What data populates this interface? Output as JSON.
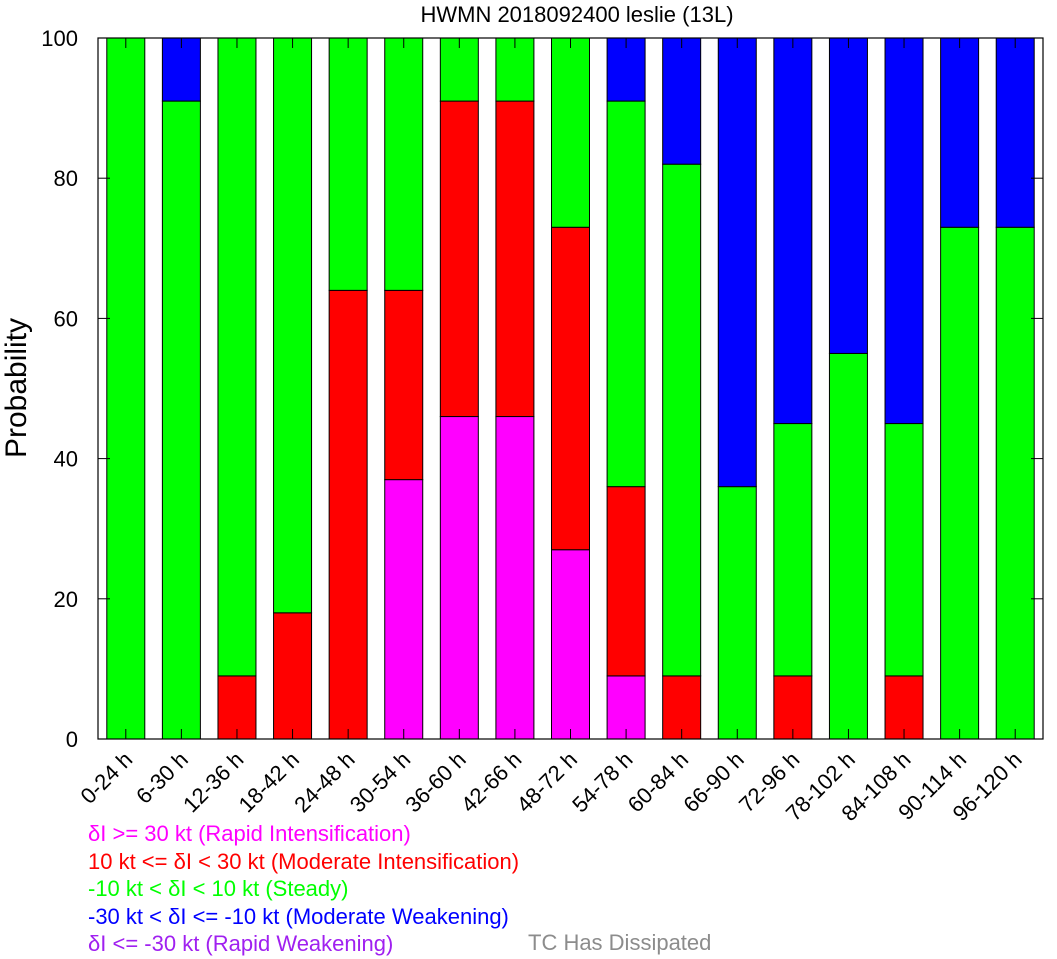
{
  "chart_data": {
    "type": "bar",
    "stacked": true,
    "title": "HWMN 2018092400 leslie (13L)",
    "xlabel": "",
    "ylabel": "Probability",
    "ylim": [
      0,
      100
    ],
    "yticks": [
      0,
      20,
      40,
      60,
      80,
      100
    ],
    "categories": [
      "0-24 h",
      "6-30 h",
      "12-36 h",
      "18-42 h",
      "24-48 h",
      "30-54 h",
      "36-60 h",
      "42-66 h",
      "48-72 h",
      "54-78 h",
      "60-84 h",
      "66-90 h",
      "72-96 h",
      "78-102 h",
      "84-108 h",
      "90-114 h",
      "96-120 h"
    ],
    "series": [
      {
        "name": "Rapid Intensification",
        "color": "#ff00ff",
        "values": [
          0,
          0,
          0,
          0,
          0,
          37,
          46,
          46,
          27,
          9,
          0,
          0,
          0,
          0,
          0,
          0,
          0
        ]
      },
      {
        "name": "Moderate Intensification",
        "color": "#ff0000",
        "values": [
          0,
          0,
          9,
          18,
          64,
          27,
          45,
          45,
          46,
          27,
          9,
          0,
          9,
          0,
          9,
          0,
          0
        ]
      },
      {
        "name": "Steady",
        "color": "#00ff00",
        "values": [
          100,
          91,
          91,
          82,
          36,
          36,
          9,
          9,
          27,
          55,
          73,
          36,
          36,
          55,
          36,
          73,
          73
        ]
      },
      {
        "name": "Moderate Weakening",
        "color": "#0000ff",
        "values": [
          0,
          9,
          0,
          0,
          0,
          0,
          0,
          0,
          0,
          9,
          18,
          64,
          55,
          45,
          55,
          27,
          27
        ]
      },
      {
        "name": "Rapid Weakening",
        "color": "#a020f0",
        "values": [
          0,
          0,
          0,
          0,
          0,
          0,
          0,
          0,
          0,
          0,
          0,
          0,
          0,
          0,
          0,
          0,
          0
        ]
      }
    ]
  },
  "legend": {
    "items": [
      {
        "text": "δI >= 30 kt (Rapid Intensification)",
        "color": "#ff00ff"
      },
      {
        "text": "10 kt <= δI < 30 kt (Moderate Intensification)",
        "color": "#ff0000"
      },
      {
        "text": "-10 kt < δI < 10 kt (Steady)",
        "color": "#00ff00"
      },
      {
        "text": "-30 kt < δI <= -10 kt (Moderate Weakening)",
        "color": "#0000ff"
      },
      {
        "text": "δI <= -30 kt (Rapid Weakening)",
        "color": "#a020f0"
      }
    ],
    "dissipated_text": "TC Has Dissipated",
    "dissipated_color": "#8c8c8c"
  }
}
